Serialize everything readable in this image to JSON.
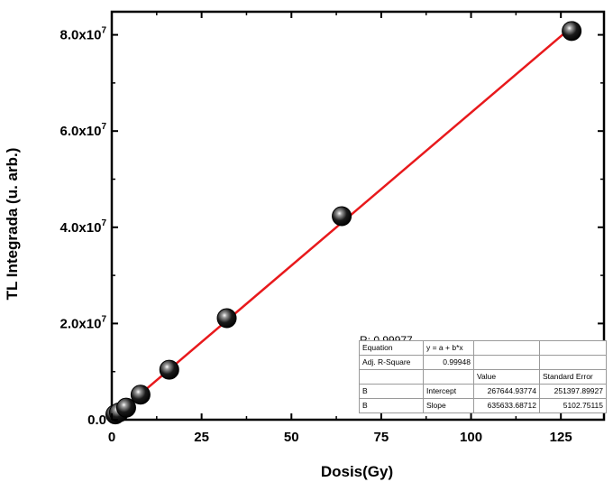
{
  "chart_data": {
    "type": "scatter",
    "xlabel": "Dosis(Gy)",
    "ylabel": "TL Integrada (u. arb.)",
    "xlim": [
      0,
      137
    ],
    "ylim": [
      0,
      84800000
    ],
    "xticks": [
      0,
      25,
      50,
      75,
      100,
      125
    ],
    "xtick_labels": [
      "0",
      "25",
      "50",
      "75",
      "100",
      "125"
    ],
    "yticks": [
      0,
      20000000,
      40000000,
      60000000,
      80000000
    ],
    "ytick_labels": [
      {
        "mantissa": "0.0",
        "exp": ""
      },
      {
        "mantissa": "2.0x10",
        "exp": "7"
      },
      {
        "mantissa": "4.0x10",
        "exp": "7"
      },
      {
        "mantissa": "6.0x10",
        "exp": "7"
      },
      {
        "mantissa": "8.0x10",
        "exp": "7"
      }
    ],
    "series": [
      {
        "x": [
          1,
          2,
          4,
          8,
          16,
          32,
          64,
          128
        ],
        "y": [
          1100000,
          1500000,
          2500000,
          5200000,
          10400000,
          21100000,
          42300000,
          80800000
        ],
        "color": "#000000"
      }
    ],
    "fit": {
      "intercept": 267644.93774,
      "slope": 635633.68712,
      "x_range": [
        0,
        128
      ],
      "color": "#e8191c"
    },
    "annotation": {
      "r_label": "R: 0.99977"
    },
    "fit_table": {
      "rows": [
        [
          "Equation",
          "y = a + b*x",
          "",
          ""
        ],
        [
          "Adj. R-Square",
          "0.99948",
          "",
          ""
        ],
        [
          "",
          "",
          "Value",
          "Standard Error"
        ],
        [
          "B",
          "Intercept",
          "267644.93774",
          "251397.89927"
        ],
        [
          "B",
          "Slope",
          "635633.68712",
          "5102.75115"
        ]
      ]
    },
    "grid": false,
    "legend": "none"
  }
}
